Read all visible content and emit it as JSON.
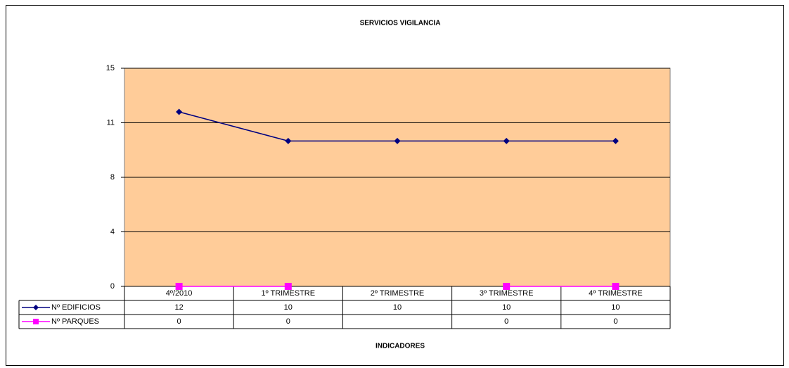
{
  "chart_data": {
    "type": "line",
    "title": "SERVICIOS VIGILANCIA",
    "x_label": "INDICADORES",
    "categories": [
      "4º/2010",
      "1º TRIMESTRE",
      "2º TRIMESTRE",
      "3º TRIMESTRE",
      "4º TRIMESTRE"
    ],
    "series": [
      {
        "name": "Nº EDIFICIOS",
        "color": "#000080",
        "marker": "diamond",
        "values": [
          12,
          10,
          10,
          10,
          10
        ]
      },
      {
        "name": "Nº PARQUES",
        "color": "#ff00ff",
        "marker": "square",
        "values": [
          0,
          0,
          null,
          0,
          0
        ]
      }
    ],
    "ylim": [
      0,
      15
    ],
    "yticks": [
      0,
      {
        "value": 3.75,
        "label": "4"
      },
      {
        "value": 7.5,
        "label": "8"
      },
      {
        "value": 11.25,
        "label": "11"
      },
      15
    ],
    "grid": true,
    "background": "#ffcc99",
    "legend": "data-table"
  }
}
